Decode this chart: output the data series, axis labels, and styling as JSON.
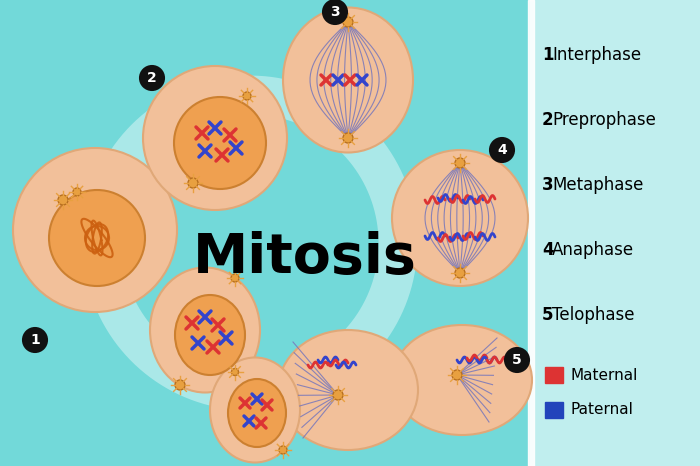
{
  "bg_color": "#72D9D9",
  "right_panel_color": "#C0EEEE",
  "white_strip_color": "#FFFFFF",
  "title": "Mitosis",
  "title_fontsize": 40,
  "phases": [
    {
      "num": "1",
      "name": "Interphase"
    },
    {
      "num": "2",
      "name": "Preprophase"
    },
    {
      "num": "3",
      "name": "Metaphase"
    },
    {
      "num": "4",
      "name": "Anaphase"
    },
    {
      "num": "5",
      "name": "Telophase"
    }
  ],
  "cell_color": "#F2C09A",
  "cell_edge": "#E0A878",
  "nucleus_color": "#EFA050",
  "nucleus_edge": "#CC8030",
  "dna_color": "#CC6010",
  "chr_red": "#DD3333",
  "chr_blue": "#3344CC",
  "spindle_color": "#7777BB",
  "centriole_color": "#E8A040",
  "centriole_edge": "#B87020",
  "badge_color": "#111111",
  "badge_text": "#FFFFFF",
  "legend_red": "#DD3333",
  "legend_blue": "#2244BB",
  "track_color": "#FFFFFF",
  "track_alpha": 0.4,
  "track_lw": 28
}
